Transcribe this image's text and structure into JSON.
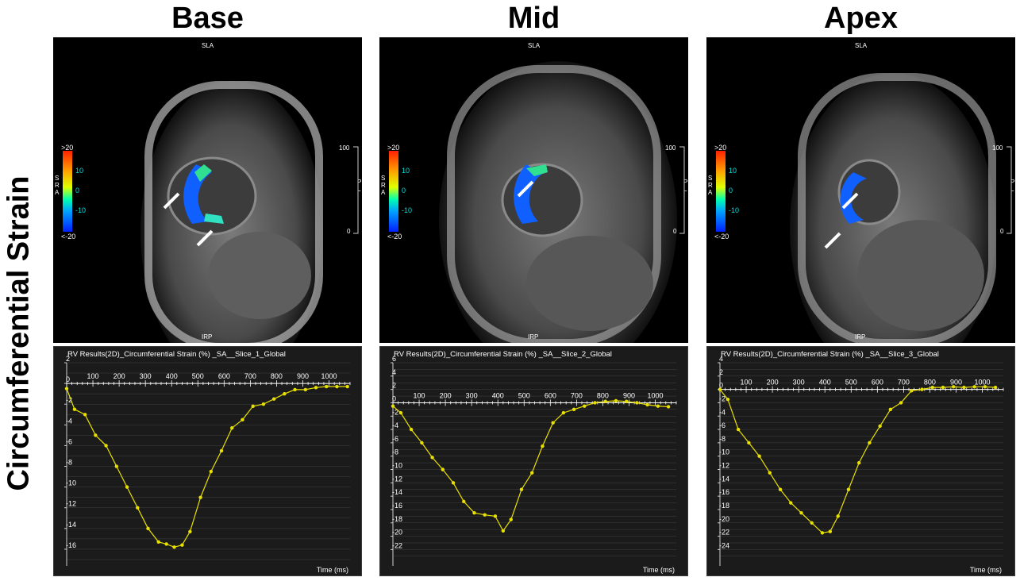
{
  "side_title": "Circumferential Strain",
  "columns": [
    {
      "title": "Base",
      "mri": {
        "top_label": "SLA",
        "bottom_label": "IRP",
        "scale_side_label": "S\nR\nA",
        "scale_labels": [
          ">20",
          "10",
          "0",
          "-10",
          "<-20"
        ],
        "right_scale_labels": [
          "100",
          "0"
        ],
        "right_side_label": "P\nL\nI"
      }
    },
    {
      "title": "Mid",
      "mri": {
        "top_label": "SLA",
        "bottom_label": "IRP",
        "scale_side_label": "S\nR\nA",
        "scale_labels": [
          ">20",
          "10",
          "0",
          "-10",
          "<-20"
        ],
        "right_scale_labels": [
          "100",
          "0"
        ],
        "right_side_label": "P\nL\nI"
      }
    },
    {
      "title": "Apex",
      "mri": {
        "top_label": "SLA",
        "bottom_label": "IRP",
        "scale_side_label": "S\nR\nA",
        "scale_labels": [
          ">20",
          "10",
          "0",
          "-10",
          "<-20"
        ],
        "right_scale_labels": [
          "100",
          "0"
        ],
        "right_side_label": "P\nL\nI"
      }
    }
  ],
  "colors": {
    "trace": "#e8e000",
    "plot_bg": "#1b1b1b",
    "grid": "#5a5a5a",
    "text": "#ffffff"
  },
  "chart_data": [
    {
      "type": "line",
      "title": "RV Results(2D)_Circumferential Strain (%) _SA__Slice_1_Global",
      "xlabel": "Time (ms)",
      "ylabel": "",
      "xlim": [
        0,
        1080
      ],
      "ylim": [
        -17,
        2
      ],
      "xticks": [
        100,
        200,
        300,
        400,
        500,
        600,
        700,
        800,
        900,
        1000
      ],
      "yticks": [
        2,
        0,
        -2,
        -4,
        -6,
        -8,
        -10,
        -12,
        -14,
        -16
      ],
      "grid": true,
      "series": [
        {
          "x": [
            0,
            30,
            70,
            110,
            150,
            190,
            230,
            270,
            310,
            350,
            380,
            410,
            440,
            470,
            510,
            550,
            590,
            630,
            670,
            710,
            750,
            790,
            830,
            870,
            910,
            950,
            990,
            1030,
            1070
          ],
          "y": [
            -0.5,
            -2.5,
            -3.0,
            -5.0,
            -6.0,
            -8.0,
            -10.0,
            -12.0,
            -14.0,
            -15.3,
            -15.5,
            -15.8,
            -15.6,
            -14.3,
            -11.0,
            -8.5,
            -6.5,
            -4.3,
            -3.5,
            -2.2,
            -2.0,
            -1.5,
            -1.0,
            -0.6,
            -0.6,
            -0.4,
            -0.3,
            -0.3,
            -0.3
          ]
        }
      ]
    },
    {
      "type": "line",
      "title": "RV Results(2D)_Circumferential Strain (%) _SA__Slice_2_Global",
      "xlabel": "Time (ms)",
      "ylabel": "",
      "xlim": [
        0,
        1080
      ],
      "ylim": [
        -23.5,
        6
      ],
      "xticks": [
        100,
        200,
        300,
        400,
        500,
        600,
        700,
        800,
        900,
        1000
      ],
      "yticks": [
        6,
        4,
        2,
        0,
        -2,
        -4,
        -6,
        -8,
        -10,
        -12,
        -14,
        -16,
        -18,
        -20,
        -22
      ],
      "grid": true,
      "series": [
        {
          "x": [
            0,
            30,
            70,
            110,
            150,
            190,
            230,
            270,
            310,
            350,
            390,
            420,
            450,
            490,
            530,
            570,
            610,
            650,
            690,
            730,
            770,
            810,
            850,
            890,
            930,
            970,
            1010,
            1050
          ],
          "y": [
            -0.5,
            -1.5,
            -4.0,
            -6.0,
            -8.2,
            -10.0,
            -12.0,
            -14.8,
            -16.5,
            -16.8,
            -17.0,
            -19.2,
            -17.5,
            -13.0,
            -10.5,
            -6.5,
            -3.0,
            -1.5,
            -1.0,
            -0.5,
            0.0,
            0.2,
            0.3,
            0.2,
            0.0,
            -0.3,
            -0.5,
            -0.6
          ]
        }
      ]
    },
    {
      "type": "line",
      "title": "RV Results(2D)_Circumferential Strain (%) _SA__Slice_3_Global",
      "xlabel": "Time (ms)",
      "ylabel": "",
      "xlim": [
        0,
        1080
      ],
      "ylim": [
        -25.5,
        4
      ],
      "xticks": [
        100,
        200,
        300,
        400,
        500,
        600,
        700,
        800,
        900,
        1000
      ],
      "yticks": [
        4,
        2,
        0,
        -2,
        -4,
        -6,
        -8,
        -10,
        -12,
        -14,
        -16,
        -18,
        -20,
        -22,
        -24
      ],
      "grid": true,
      "series": [
        {
          "x": [
            0,
            30,
            70,
            110,
            150,
            190,
            230,
            270,
            310,
            350,
            390,
            420,
            450,
            490,
            530,
            570,
            610,
            650,
            690,
            730,
            770,
            810,
            850,
            890,
            930,
            970,
            1010,
            1050
          ],
          "y": [
            0.0,
            -1.5,
            -6.0,
            -8.0,
            -10.0,
            -12.5,
            -15.0,
            -17.0,
            -18.5,
            -20.0,
            -21.5,
            -21.3,
            -19.0,
            -15.0,
            -11.0,
            -8.0,
            -5.5,
            -3.0,
            -2.0,
            -0.2,
            0.0,
            0.3,
            0.3,
            0.4,
            0.3,
            0.4,
            0.4,
            0.3
          ]
        }
      ]
    }
  ]
}
